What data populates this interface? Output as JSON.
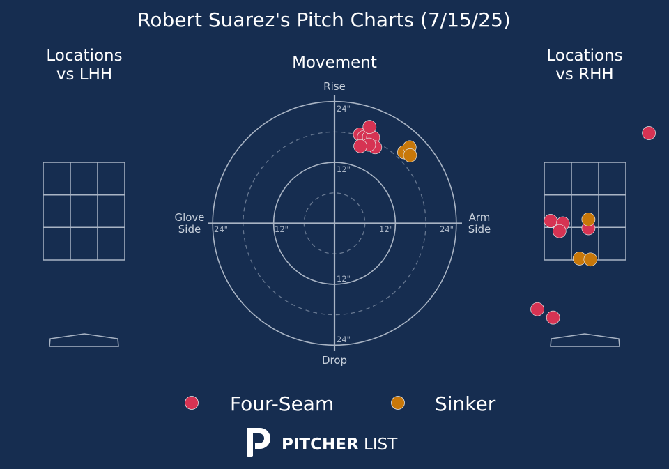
{
  "chart_data": {
    "type": "scatter",
    "title": "Robert Suarez's Pitch Charts (7/15/25)",
    "colors": {
      "background": "#162d50",
      "four_seam": "#d63353",
      "sinker": "#c8780a",
      "grid": "#a9b4c4",
      "text": "#ffffff",
      "muted": "#c8d0db"
    },
    "legend": {
      "placement": "bottom-center",
      "items": [
        {
          "name": "Four-Seam",
          "color": "#d63353"
        },
        {
          "name": "Sinker",
          "color": "#c8780a"
        }
      ]
    },
    "panels": {
      "lhh": {
        "title_line1": "Locations",
        "title_line2": "vs LHH",
        "points": []
      },
      "movement": {
        "title": "Movement",
        "label_top": "Rise",
        "label_bottom": "Drop",
        "label_left_1": "Glove",
        "label_left_2": "Side",
        "label_right_1": "Arm",
        "label_right_2": "Side",
        "ring_values": [
          6,
          12,
          18,
          24
        ],
        "tick_labels": {
          "inner": "12\"",
          "outer": "24\""
        },
        "xlim": [
          -24,
          24
        ],
        "ylim": [
          -24,
          24
        ],
        "series": [
          {
            "name": "Four-Seam",
            "color": "#d63353",
            "points": [
              [
                5,
                17.5
              ],
              [
                5.8,
                17
              ],
              [
                6.8,
                17
              ],
              [
                7.6,
                16.9
              ],
              [
                8,
                15
              ],
              [
                6.8,
                15.5
              ],
              [
                5.1,
                15.2
              ],
              [
                6.9,
                19
              ]
            ]
          },
          {
            "name": "Sinker",
            "color": "#c8780a",
            "points": [
              [
                13.7,
                14
              ],
              [
                14.8,
                15
              ],
              [
                14.9,
                13.4
              ]
            ]
          }
        ]
      },
      "rhh": {
        "title_line1": "Locations",
        "title_line2": "vs RHH",
        "series": [
          {
            "name": "Four-Seam",
            "color": "#d63353",
            "points": [
              [
                -0.7,
                2.3
              ],
              [
                -0.45,
                2.25
              ],
              [
                -0.52,
                2.09
              ],
              [
                0.07,
                2.15
              ],
              [
                -0.97,
                0.49
              ],
              [
                -0.65,
                0.32
              ],
              [
                1.3,
                4.1
              ]
            ]
          },
          {
            "name": "Sinker",
            "color": "#c8780a",
            "points": [
              [
                0.07,
                2.33
              ],
              [
                -0.11,
                1.53
              ],
              [
                0.11,
                1.51
              ]
            ]
          }
        ]
      }
    }
  },
  "brand": {
    "bold": "PITCHER",
    "light": "LIST"
  }
}
